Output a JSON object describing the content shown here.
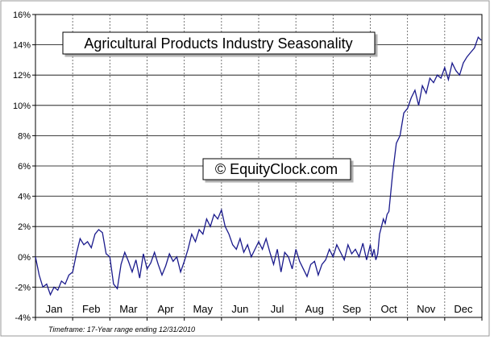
{
  "chart_data": {
    "type": "line",
    "title": "Agricultural Products Industry Seasonality",
    "watermark": "© EquityClock.com",
    "footnote": "Timeframe: 17-Year range ending 12/31/2010",
    "xlabel": "",
    "ylabel": "",
    "ylim": [
      -4,
      16
    ],
    "yticks": [
      -4,
      -2,
      0,
      2,
      4,
      6,
      8,
      10,
      12,
      14,
      16
    ],
    "ytick_labels": [
      "-4%",
      "-2%",
      "0%",
      "2%",
      "4%",
      "6%",
      "8%",
      "10%",
      "12%",
      "14%",
      "16%"
    ],
    "xlim": [
      0,
      12
    ],
    "categories": [
      "Jan",
      "Feb",
      "Mar",
      "Apr",
      "May",
      "Jun",
      "Jul",
      "Aug",
      "Sep",
      "Oct",
      "Nov",
      "Dec"
    ],
    "grid": {
      "horizontal": true,
      "vertical_dashed": true
    },
    "line_color": "#1a1a8c",
    "series": [
      {
        "x": [
          0.0,
          0.1,
          0.2,
          0.3,
          0.4,
          0.5,
          0.6,
          0.7,
          0.8,
          0.9,
          1.0,
          1.1,
          1.2,
          1.3,
          1.4,
          1.5,
          1.6,
          1.7,
          1.8,
          1.9,
          2.0,
          2.1,
          2.2,
          2.3,
          2.4,
          2.5,
          2.6,
          2.7,
          2.8,
          2.9,
          3.0,
          3.1,
          3.2,
          3.3,
          3.4,
          3.5,
          3.6,
          3.7,
          3.8,
          3.9,
          4.0,
          4.1,
          4.2,
          4.3,
          4.4,
          4.5,
          4.6,
          4.7,
          4.8,
          4.9,
          5.0,
          5.1,
          5.2,
          5.3,
          5.4,
          5.5,
          5.6,
          5.7,
          5.8,
          5.9,
          6.0,
          6.1,
          6.2,
          6.3,
          6.4,
          6.5,
          6.6,
          6.7,
          6.8,
          6.9,
          7.0,
          7.1,
          7.2,
          7.3,
          7.4,
          7.5,
          7.6,
          7.7,
          7.8,
          7.9,
          8.0,
          8.1,
          8.2,
          8.3,
          8.4,
          8.5,
          8.6,
          8.7,
          8.8,
          8.9,
          9.0,
          9.05,
          9.1,
          9.15,
          9.2,
          9.25,
          9.3,
          9.35,
          9.4,
          9.45,
          9.5,
          9.6,
          9.7,
          9.8,
          9.9,
          10.0,
          10.1,
          10.2,
          10.3,
          10.4,
          10.5,
          10.6,
          10.7,
          10.8,
          10.9,
          11.0,
          11.1,
          11.2,
          11.3,
          11.4,
          11.5,
          11.6,
          11.7,
          11.8,
          11.9,
          11.98
        ],
        "values": [
          0.0,
          -1.2,
          -2.0,
          -1.8,
          -2.5,
          -2.0,
          -2.2,
          -1.6,
          -1.8,
          -1.2,
          -1.0,
          0.2,
          1.2,
          0.8,
          1.0,
          0.6,
          1.5,
          1.8,
          1.6,
          0.2,
          0.0,
          -1.8,
          -2.1,
          -0.5,
          0.3,
          -0.3,
          -1.0,
          -0.2,
          -1.4,
          0.2,
          -0.8,
          -0.4,
          0.3,
          -0.5,
          -1.2,
          -0.6,
          0.2,
          -0.3,
          0.0,
          -1.0,
          -0.3,
          0.5,
          1.5,
          1.0,
          1.8,
          1.5,
          2.5,
          2.0,
          2.8,
          2.5,
          3.1,
          2.0,
          1.5,
          0.8,
          0.5,
          1.2,
          0.3,
          0.8,
          0.0,
          0.5,
          1.0,
          0.5,
          1.2,
          0.3,
          -0.5,
          0.5,
          -1.0,
          0.3,
          0.0,
          -0.8,
          0.5,
          -0.3,
          -0.8,
          -1.3,
          -0.5,
          -0.3,
          -1.2,
          -0.5,
          -0.2,
          0.5,
          0.0,
          0.8,
          0.3,
          -0.2,
          0.8,
          0.2,
          0.5,
          0.0,
          0.9,
          -0.2,
          0.8,
          0.0,
          0.5,
          -0.2,
          0.2,
          1.5,
          2.0,
          2.5,
          2.2,
          2.8,
          3.0,
          5.5,
          7.5,
          8.0,
          9.5,
          9.8,
          10.5,
          11.0,
          10.0,
          11.3,
          10.8,
          11.8,
          11.5,
          12.0,
          11.8,
          12.5,
          11.7,
          12.8,
          12.3,
          12.0,
          12.8,
          13.2,
          13.5,
          13.8,
          14.5,
          14.3
        ]
      }
    ]
  }
}
